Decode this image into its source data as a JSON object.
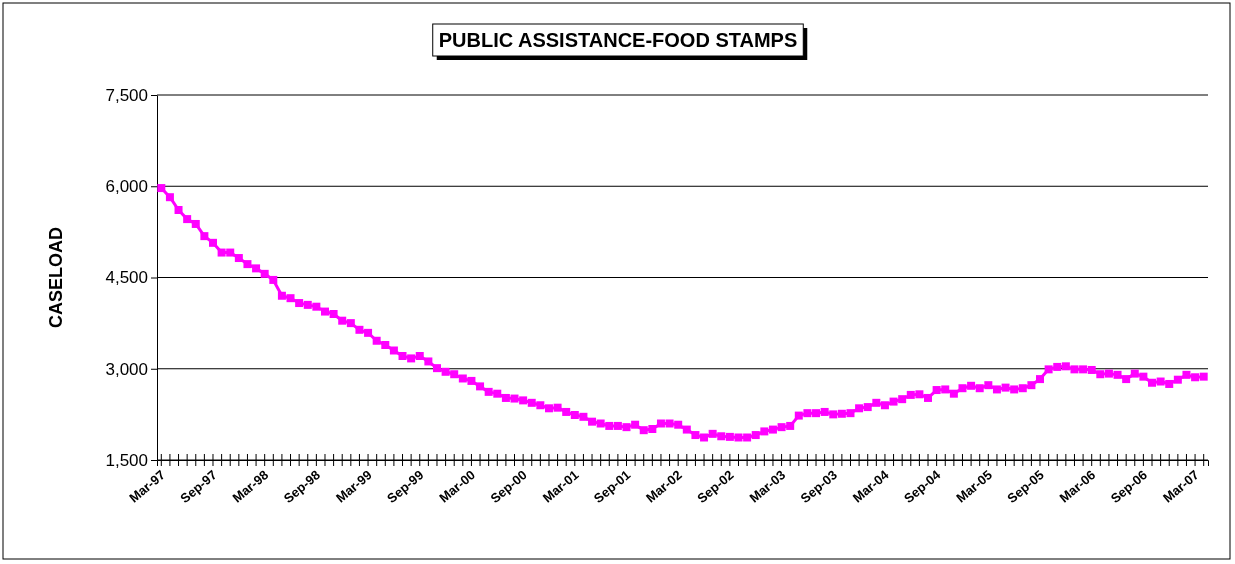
{
  "chart_data": {
    "type": "line",
    "title": "PUBLIC ASSISTANCE-FOOD STAMPS",
    "ylabel": "CASELOAD",
    "categories": [
      "Mar-97",
      null,
      null,
      null,
      null,
      null,
      "Sep-97",
      null,
      null,
      null,
      null,
      null,
      "Mar-98",
      null,
      null,
      null,
      null,
      null,
      "Sep-98",
      null,
      null,
      null,
      null,
      null,
      "Mar-99",
      null,
      null,
      null,
      null,
      null,
      "Sep-99",
      null,
      null,
      null,
      null,
      null,
      "Mar-00",
      null,
      null,
      null,
      null,
      null,
      "Sep-00",
      null,
      null,
      null,
      null,
      null,
      "Mar-01",
      null,
      null,
      null,
      null,
      null,
      "Sep-01",
      null,
      null,
      null,
      null,
      null,
      "Mar-02",
      null,
      null,
      null,
      null,
      null,
      "Sep-02",
      null,
      null,
      null,
      null,
      null,
      "Mar-03",
      null,
      null,
      null,
      null,
      null,
      "Sep-03",
      null,
      null,
      null,
      null,
      null,
      "Mar-04",
      null,
      null,
      null,
      null,
      null,
      "Sep-04",
      null,
      null,
      null,
      null,
      null,
      "Mar-05",
      null,
      null,
      null,
      null,
      null,
      "Sep-05",
      null,
      null,
      null,
      null,
      null,
      "Mar-06",
      null,
      null,
      null,
      null,
      null,
      "Sep-06",
      null,
      null,
      null,
      null,
      null,
      "Mar-07",
      null
    ],
    "series": [
      {
        "color": "#ff00ff",
        "values": [
          5970,
          5820,
          5610,
          5460,
          5380,
          5180,
          5070,
          4910,
          4910,
          4820,
          4720,
          4650,
          4560,
          4460,
          4200,
          4160,
          4080,
          4050,
          4020,
          3940,
          3900,
          3790,
          3750,
          3640,
          3590,
          3460,
          3390,
          3300,
          3210,
          3170,
          3210,
          3120,
          3010,
          2950,
          2910,
          2840,
          2800,
          2710,
          2620,
          2590,
          2520,
          2510,
          2480,
          2440,
          2400,
          2350,
          2360,
          2290,
          2240,
          2210,
          2130,
          2100,
          2060,
          2060,
          2040,
          2080,
          1990,
          2010,
          2100,
          2100,
          2080,
          2000,
          1910,
          1870,
          1930,
          1890,
          1880,
          1870,
          1870,
          1910,
          1970,
          2000,
          2040,
          2060,
          2230,
          2270,
          2270,
          2290,
          2250,
          2260,
          2270,
          2350,
          2370,
          2440,
          2400,
          2460,
          2500,
          2570,
          2580,
          2520,
          2650,
          2660,
          2590,
          2680,
          2720,
          2680,
          2730,
          2660,
          2690,
          2660,
          2680,
          2730,
          2830,
          2990,
          3030,
          3040,
          2990,
          2990,
          2980,
          2910,
          2920,
          2900,
          2830,
          2920,
          2870,
          2770,
          2790,
          2750,
          2820,
          2900,
          2860,
          2870
        ]
      }
    ],
    "ylim": [
      1500,
      7500
    ],
    "yticks": [
      {
        "value": 1500,
        "label": "1,500"
      },
      {
        "value": 3000,
        "label": "3,000"
      },
      {
        "value": 4500,
        "label": "4,500"
      },
      {
        "value": 6000,
        "label": "6,000"
      },
      {
        "value": 7500,
        "label": "7,500"
      }
    ],
    "grid": "y",
    "marker": "square",
    "line_style": "solid"
  }
}
